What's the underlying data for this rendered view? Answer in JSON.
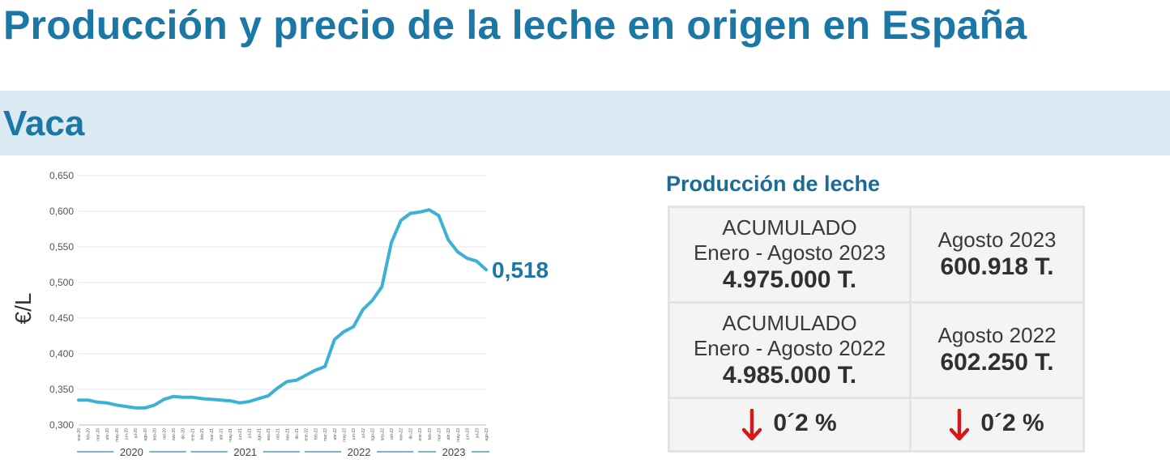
{
  "title": "Producción y precio de la leche en origen en España",
  "section": "Vaca",
  "chart_data": {
    "type": "line",
    "ylabel": "€/L",
    "ylim": [
      0.3,
      0.65
    ],
    "yticks": [
      "0,650",
      "0,600",
      "0,550",
      "0,500",
      "0,450",
      "0,400",
      "0,350",
      "0,300"
    ],
    "grid": true,
    "x": [
      "ene-20",
      "feb-20",
      "mar-20",
      "abr-20",
      "may-20",
      "jun-20",
      "jul-20",
      "ago-20",
      "sep-20",
      "oct-20",
      "nov-20",
      "dic-20",
      "ene-21",
      "feb-21",
      "mar-21",
      "abr-21",
      "may-21",
      "jun-21",
      "jul-21",
      "ago-21",
      "sep-21",
      "oct-21",
      "nov-21",
      "dic-21",
      "ene-22",
      "feb-22",
      "mar-22",
      "abr-22",
      "may-22",
      "jun-22",
      "jul-22",
      "ago-22",
      "sep-22",
      "oct-22",
      "nov-22",
      "dic-22",
      "ene-23",
      "feb-23",
      "mar-23",
      "abr-23",
      "may-23",
      "jun-23",
      "jul-23",
      "ago-23"
    ],
    "values": [
      0.335,
      0.335,
      0.332,
      0.331,
      0.328,
      0.326,
      0.324,
      0.324,
      0.328,
      0.336,
      0.34,
      0.339,
      0.339,
      0.337,
      0.336,
      0.335,
      0.334,
      0.331,
      0.333,
      0.337,
      0.341,
      0.352,
      0.361,
      0.363,
      0.37,
      0.377,
      0.382,
      0.42,
      0.431,
      0.438,
      0.462,
      0.475,
      0.494,
      0.556,
      0.587,
      0.597,
      0.599,
      0.602,
      0.594,
      0.56,
      0.543,
      0.534,
      0.53,
      0.518
    ],
    "years": [
      "2020",
      "2021",
      "2022",
      "2023"
    ],
    "last_value_label": "0,518",
    "line_color": "#3cb1d6",
    "label_color": "#1b77a6"
  },
  "production": {
    "title": "Producción de leche",
    "rows": [
      {
        "left_lines": [
          "ACUMULADO",
          "Enero - Agosto 2023"
        ],
        "left_value": "4.975.000 T.",
        "right_line": "Agosto 2023",
        "right_value": "600.918 T."
      },
      {
        "left_lines": [
          "ACUMULADO",
          "Enero - Agosto 2022"
        ],
        "left_value": "4.985.000 T.",
        "right_line": "Agosto 2022",
        "right_value": "602.250 T."
      }
    ],
    "changes": {
      "left": "0´2 %",
      "right": "0´2 %",
      "icon": "arrow-down-icon",
      "icon_color": "#d11a1a"
    }
  }
}
